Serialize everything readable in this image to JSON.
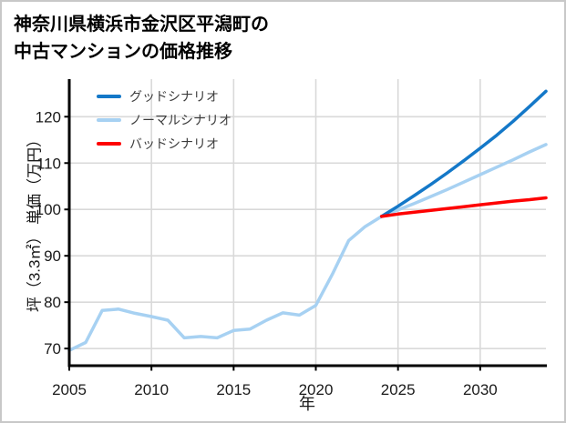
{
  "header": {
    "title_lines": [
      "神奈川県横浜市金沢区平潟町の",
      "中古マンションの価格推移"
    ]
  },
  "colors": {
    "good": "#1478c8",
    "normal": "#a7d1f2",
    "bad": "#fe0000",
    "grid": "#d9d9d9",
    "axis": "#000000",
    "tick_label": "#1a1a1a",
    "legend_text": "#3c3c3c",
    "border": "#c8c8c8"
  },
  "legend": {
    "items": [
      {
        "label": "グッドシナリオ",
        "color": "#1478c8"
      },
      {
        "label": "ノーマルシナリオ",
        "color": "#a7d1f2"
      },
      {
        "label": "バッドシナリオ",
        "color": "#fe0000"
      }
    ]
  },
  "chart_data": {
    "type": "line",
    "title": "神奈川県横浜市金沢区平潟町の中古マンションの価格推移",
    "xlabel": "年",
    "ylabel": "坪（3.3㎡） 単価（万円）",
    "xlim": [
      2005,
      2034
    ],
    "ylim": [
      66.3,
      128.1
    ],
    "xticks": [
      2005,
      2010,
      2015,
      2020,
      2025,
      2030
    ],
    "yticks": [
      70,
      80,
      90,
      100,
      110,
      120
    ],
    "grid": true,
    "legend_position": "upper-left-inside",
    "series": [
      {
        "id": "normal",
        "name": "ノーマルシナリオ",
        "color": "#a7d1f2",
        "x": [
          2005,
          2006,
          2007,
          2008,
          2009,
          2010,
          2011,
          2012,
          2013,
          2014,
          2015,
          2016,
          2017,
          2018,
          2019,
          2020,
          2021,
          2022,
          2023,
          2024,
          2025,
          2026,
          2027,
          2028,
          2029,
          2030,
          2031,
          2032,
          2033,
          2034
        ],
        "y": [
          69.6,
          71.3,
          78.2,
          78.5,
          77.6,
          76.9,
          76.1,
          72.3,
          72.6,
          72.3,
          73.9,
          74.2,
          76.1,
          77.7,
          77.2,
          79.3,
          86.0,
          93.3,
          96.3,
          98.5,
          99.9,
          101.3,
          102.8,
          104.3,
          105.9,
          107.5,
          109.1,
          110.7,
          112.4,
          114.0
        ]
      },
      {
        "id": "good",
        "name": "グッドシナリオ",
        "color": "#1478c8",
        "x": [
          2024,
          2025,
          2026,
          2027,
          2028,
          2029,
          2030,
          2031,
          2032,
          2033,
          2034
        ],
        "y": [
          98.5,
          100.7,
          103.0,
          105.4,
          107.9,
          110.5,
          113.2,
          116.0,
          119.0,
          122.2,
          125.5
        ]
      },
      {
        "id": "bad",
        "name": "バッドシナリオ",
        "color": "#fe0000",
        "x": [
          2024,
          2025,
          2026,
          2027,
          2028,
          2029,
          2030,
          2031,
          2032,
          2033,
          2034
        ],
        "y": [
          98.5,
          99.0,
          99.4,
          99.8,
          100.2,
          100.6,
          101.0,
          101.4,
          101.8,
          102.1,
          102.5
        ]
      }
    ]
  }
}
